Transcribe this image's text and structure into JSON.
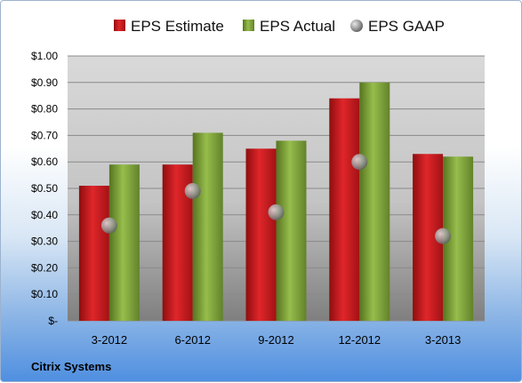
{
  "chart_data": {
    "type": "bar",
    "categories": [
      "3-2012",
      "6-2012",
      "9-2012",
      "12-2012",
      "3-2013"
    ],
    "series": [
      {
        "name": "EPS Estimate",
        "kind": "bar",
        "values": [
          0.51,
          0.59,
          0.65,
          0.84,
          0.63
        ]
      },
      {
        "name": "EPS Actual",
        "kind": "bar",
        "values": [
          0.59,
          0.71,
          0.68,
          0.9,
          0.62
        ]
      },
      {
        "name": "EPS GAAP",
        "kind": "marker",
        "values": [
          0.36,
          0.49,
          0.41,
          0.6,
          0.32
        ]
      }
    ],
    "yticks": [
      "$-",
      "$0.10",
      "$0.20",
      "$0.30",
      "$0.40",
      "$0.50",
      "$0.60",
      "$0.70",
      "$0.80",
      "$0.90",
      "$1.00"
    ],
    "ylim": [
      0,
      1.0
    ],
    "grid": true,
    "legend_position": "top",
    "colors": {
      "estimate": "#c8171b",
      "actual": "#7ea33a",
      "gaap": "#a8a8a8"
    },
    "source": "Citrix Systems"
  }
}
